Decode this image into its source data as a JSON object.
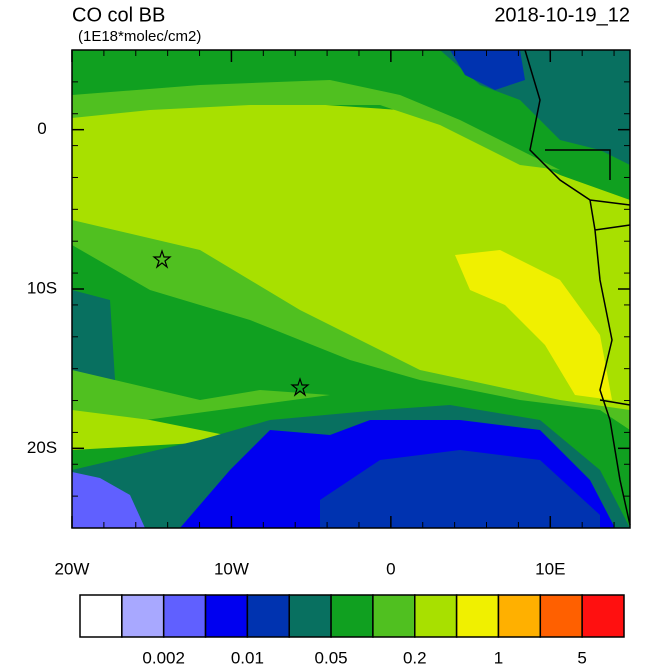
{
  "header": {
    "title": "CO col BB",
    "units": "(1E18*molec/cm2)",
    "date": "2018-10-19_12"
  },
  "map": {
    "xlim": [
      -20,
      15
    ],
    "ylim": [
      -25,
      5
    ],
    "xticks": [
      {
        "value": -20,
        "label": "20W"
      },
      {
        "value": -10,
        "label": "10W"
      },
      0,
      {
        "value": 10,
        "label": "10E"
      }
    ],
    "yticks": [
      0,
      {
        "value": -10,
        "label": "10S"
      },
      {
        "value": -20,
        "label": "20S"
      }
    ]
  },
  "colorbar": {
    "colors": [
      "#ffffff",
      "#a8a8ff",
      "#6060ff",
      "#0000f0",
      "#0033b0",
      "#087060",
      "#10a020",
      "#50c020",
      "#a8e000",
      "#f0f000",
      "#ffb000",
      "#ff6000",
      "#ff1010"
    ],
    "labels": [
      "0.002",
      "0.01",
      "0.05",
      "0.2",
      "1",
      "5"
    ]
  }
}
